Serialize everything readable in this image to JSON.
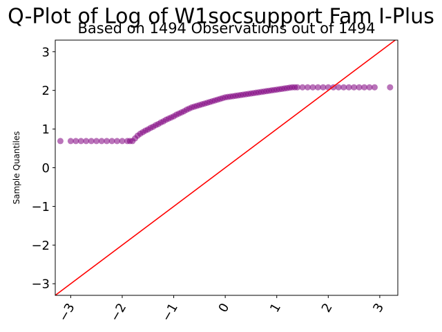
{
  "chart_data": {
    "type": "scatter",
    "title": "Q-Plot of Log of W1socsupport Fam I-Plus",
    "subtitle": "Based on 1494 Observations out of 1494",
    "xlabel": "",
    "ylabel": "Sample Quantiles",
    "xlim": [
      -3.3,
      3.35
    ],
    "ylim": [
      -3.3,
      3.3
    ],
    "xticks": [
      -3,
      -2,
      -1,
      0,
      1,
      2,
      3
    ],
    "xtick_labels": [
      "−3",
      "−2",
      "−1",
      "0",
      "1",
      "2",
      "3"
    ],
    "yticks": [
      -3,
      -2,
      -1,
      0,
      1,
      2,
      3
    ],
    "ytick_labels": [
      "−3",
      "−2",
      "−1",
      "0",
      "1",
      "2",
      "3"
    ],
    "grid": false,
    "marker_color": "#800080",
    "reference_line_color": "#ff0000",
    "reference_line": {
      "slope": 1,
      "intercept": 0
    },
    "points": {
      "x": [
        -3.2,
        -3.0,
        -2.9,
        -2.8,
        -2.7,
        -2.6,
        -2.5,
        -2.4,
        -2.3,
        -2.2,
        -2.1,
        -2.0,
        -1.9,
        -1.85,
        -1.8,
        -1.75,
        -1.7,
        -1.65,
        -1.6,
        -1.55,
        -1.5,
        -1.45,
        -1.4,
        -1.35,
        -1.3,
        -1.25,
        -1.2,
        -1.15,
        -1.1,
        -1.05,
        -1.0,
        -0.95,
        -0.9,
        -0.85,
        -0.8,
        -0.75,
        -0.7,
        -0.65,
        -0.6,
        -0.55,
        -0.5,
        -0.45,
        -0.4,
        -0.35,
        -0.3,
        -0.25,
        -0.2,
        -0.15,
        -0.1,
        -0.05,
        0.0,
        0.05,
        0.1,
        0.15,
        0.2,
        0.25,
        0.3,
        0.35,
        0.4,
        0.45,
        0.5,
        0.55,
        0.6,
        0.65,
        0.7,
        0.75,
        0.8,
        0.85,
        0.9,
        0.95,
        1.0,
        1.05,
        1.1,
        1.15,
        1.2,
        1.25,
        1.3,
        1.35,
        1.4,
        1.5,
        1.6,
        1.7,
        1.8,
        1.9,
        2.0,
        2.1,
        2.2,
        2.3,
        2.4,
        2.5,
        2.6,
        2.7,
        2.8,
        2.9,
        3.2
      ],
      "y": [
        0.69,
        0.69,
        0.69,
        0.69,
        0.69,
        0.69,
        0.69,
        0.69,
        0.69,
        0.69,
        0.69,
        0.69,
        0.69,
        0.69,
        0.69,
        0.76,
        0.83,
        0.88,
        0.92,
        0.96,
        0.99,
        1.03,
        1.06,
        1.1,
        1.13,
        1.17,
        1.2,
        1.24,
        1.27,
        1.3,
        1.33,
        1.37,
        1.4,
        1.43,
        1.46,
        1.5,
        1.53,
        1.56,
        1.58,
        1.6,
        1.62,
        1.64,
        1.66,
        1.68,
        1.7,
        1.72,
        1.74,
        1.76,
        1.78,
        1.8,
        1.82,
        1.83,
        1.84,
        1.85,
        1.86,
        1.87,
        1.88,
        1.89,
        1.9,
        1.91,
        1.92,
        1.93,
        1.94,
        1.95,
        1.96,
        1.97,
        1.98,
        1.99,
        2.0,
        2.01,
        2.02,
        2.03,
        2.04,
        2.05,
        2.06,
        2.07,
        2.08,
        2.08,
        2.08,
        2.08,
        2.08,
        2.08,
        2.08,
        2.08,
        2.08,
        2.08,
        2.08,
        2.08,
        2.08,
        2.08,
        2.08,
        2.08,
        2.08,
        2.08,
        2.08
      ]
    }
  }
}
